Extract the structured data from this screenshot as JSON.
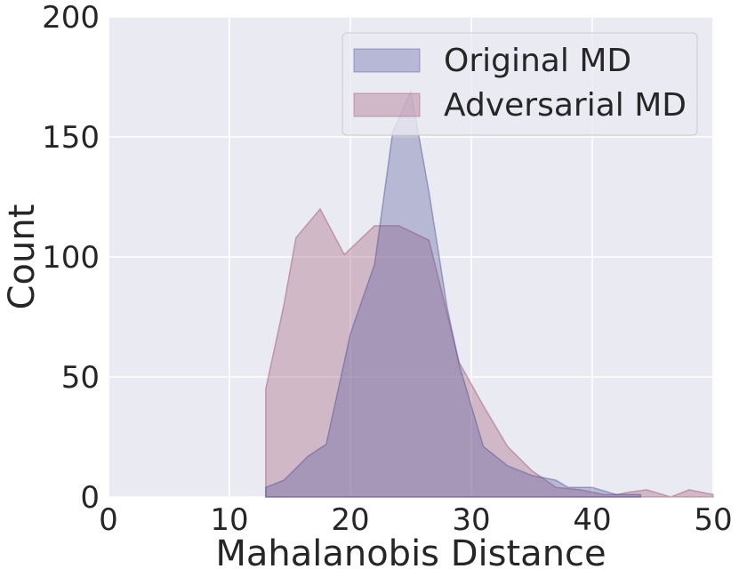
{
  "chart_data": {
    "type": "area",
    "xlabel": "Mahalanobis Distance",
    "ylabel": "Count",
    "xlim": [
      0,
      50
    ],
    "ylim": [
      0,
      200
    ],
    "xticks": [
      0,
      10,
      20,
      30,
      40,
      50
    ],
    "yticks": [
      0,
      50,
      100,
      150,
      200
    ],
    "grid": true,
    "legend_position": "top-right",
    "series": [
      {
        "name": "Adversarial MD",
        "color": "#9c4f6c",
        "x": [
          13,
          14.5,
          15.5,
          17.5,
          19.5,
          22,
          24,
          26.5,
          29,
          31,
          33,
          35,
          37,
          39,
          41,
          42,
          43,
          44.5,
          46.5,
          48,
          50
        ],
        "y": [
          45,
          80,
          108,
          120,
          101,
          113,
          113,
          107,
          56,
          38,
          21,
          11,
          4,
          3,
          1,
          1,
          2,
          3,
          0,
          3,
          1
        ]
      },
      {
        "name": "Original MD",
        "color": "#4c4f96",
        "x": [
          13,
          14.5,
          16.5,
          18,
          20,
          22,
          23.5,
          25,
          26.5,
          28,
          29,
          31,
          33,
          35,
          37,
          38,
          40,
          42,
          44
        ],
        "y": [
          4,
          7,
          17,
          22,
          68,
          97,
          152,
          169,
          127,
          79,
          55,
          21,
          13,
          9,
          7,
          4,
          4,
          1,
          1
        ]
      }
    ]
  }
}
